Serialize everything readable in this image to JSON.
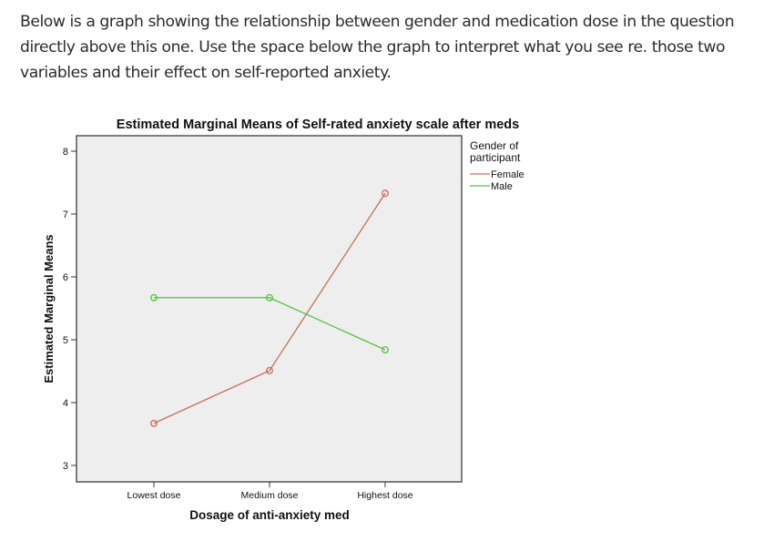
{
  "prompt": {
    "text": "Below is a graph showing the relationship between gender and medication dose in the question directly above this one.  Use the space below the graph to interpret what you see re. those two variables and their effect on self-reported anxiety."
  },
  "colors": {
    "female": "#c8705a",
    "male": "#52c43a",
    "plot_bg": "#eeeeee",
    "frame": "#555555"
  },
  "chart_data": {
    "type": "line",
    "title": "Estimated Marginal Means of Self-rated anxiety scale after meds",
    "xlabel": "Dosage of anti-anxiety med",
    "ylabel": "Estimated Marginal Means",
    "categories": [
      "Lowest dose",
      "Medium dose",
      "Highest dose"
    ],
    "yticks": [
      "3",
      "4",
      "5",
      "6",
      "7",
      "8"
    ],
    "ylim": [
      2.75,
      8.25
    ],
    "grid": false,
    "legend": {
      "title": "Gender of participant",
      "position": "right",
      "entries": [
        "Female",
        "Male"
      ]
    },
    "series": [
      {
        "name": "Female",
        "values": [
          3.67,
          4.51,
          7.33
        ]
      },
      {
        "name": "Male",
        "values": [
          5.67,
          5.67,
          4.84
        ]
      }
    ]
  }
}
